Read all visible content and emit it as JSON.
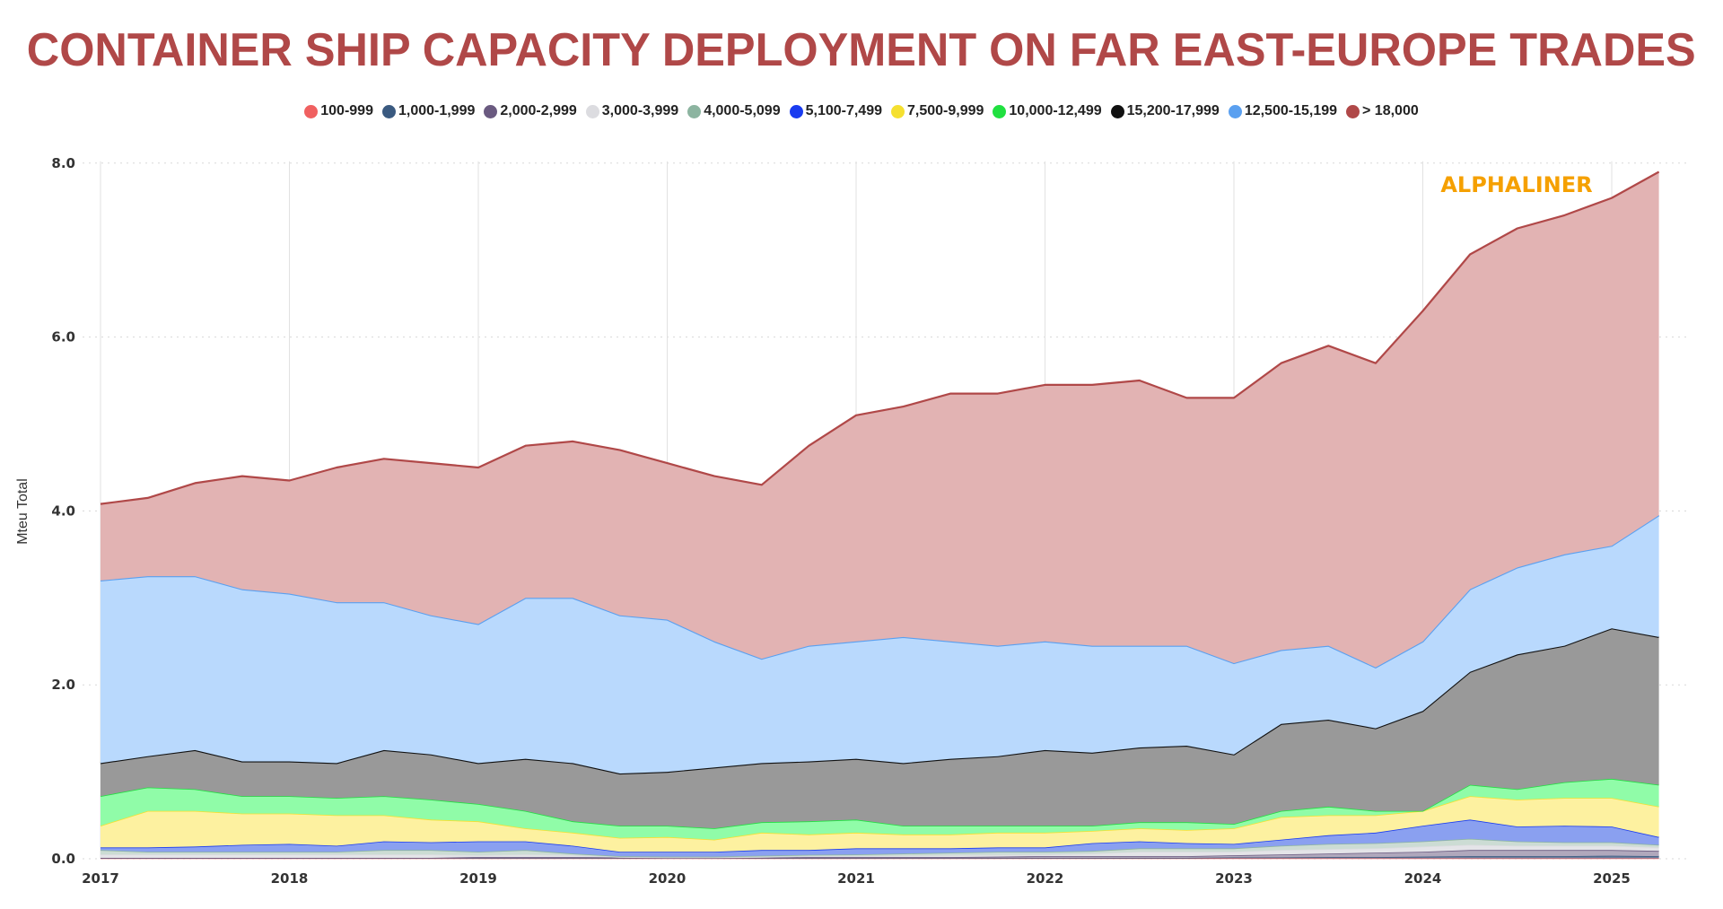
{
  "chart_data": {
    "type": "area",
    "stacked": true,
    "values_are_cumulative_tops": true,
    "title": "CONTAINER SHIP CAPACITY DEPLOYMENT ON FAR EAST-EUROPE TRADES",
    "brand": "ALPHALINER",
    "xlabel": "",
    "ylabel": "Mteu Total",
    "ylim": [
      0,
      8
    ],
    "xlim": [
      2017,
      2025.33
    ],
    "yticks": [
      "0.0",
      "2.0",
      "4.0",
      "6.0",
      "8.0"
    ],
    "xticks": [
      "2017",
      "2018",
      "2019",
      "2020",
      "2021",
      "2022",
      "2023",
      "2024",
      "2025"
    ],
    "grid": "horizontal dotted, vertical year lines",
    "legend_position": "top-center",
    "x": [
      2017,
      2017.25,
      2017.5,
      2017.75,
      2018,
      2018.25,
      2018.5,
      2018.75,
      2019,
      2019.25,
      2019.5,
      2019.75,
      2020,
      2020.25,
      2020.5,
      2020.75,
      2021,
      2021.25,
      2021.5,
      2021.75,
      2022,
      2022.25,
      2022.5,
      2022.75,
      2023,
      2023.25,
      2023.5,
      2023.75,
      2024,
      2024.25,
      2024.5,
      2024.75,
      2025,
      2025.25
    ],
    "series": [
      {
        "name": "100-999",
        "color": "#f06060",
        "fill": "#f08080",
        "values": [
          0.005,
          0.005,
          0.005,
          0.005,
          0.005,
          0.005,
          0.005,
          0.005,
          0.005,
          0.005,
          0.005,
          0.005,
          0.005,
          0.005,
          0.005,
          0.005,
          0.005,
          0.005,
          0.005,
          0.005,
          0.005,
          0.005,
          0.005,
          0.005,
          0.005,
          0.005,
          0.005,
          0.005,
          0.005,
          0.005,
          0.005,
          0.005,
          0.005,
          0.005
        ]
      },
      {
        "name": "1,000-1,999",
        "color": "#3a5a80",
        "fill": "#6a80a0",
        "values": [
          0.01,
          0.01,
          0.01,
          0.01,
          0.01,
          0.01,
          0.01,
          0.01,
          0.01,
          0.01,
          0.01,
          0.01,
          0.01,
          0.01,
          0.01,
          0.01,
          0.01,
          0.01,
          0.01,
          0.01,
          0.01,
          0.01,
          0.01,
          0.01,
          0.015,
          0.015,
          0.02,
          0.02,
          0.025,
          0.03,
          0.03,
          0.03,
          0.035,
          0.03
        ]
      },
      {
        "name": "2,000-2,999",
        "color": "#6a5a80",
        "fill": "#b0a8bc",
        "values": [
          0.01,
          0.01,
          0.01,
          0.01,
          0.01,
          0.01,
          0.01,
          0.01,
          0.02,
          0.02,
          0.02,
          0.015,
          0.01,
          0.01,
          0.015,
          0.02,
          0.02,
          0.02,
          0.02,
          0.025,
          0.03,
          0.03,
          0.03,
          0.03,
          0.04,
          0.05,
          0.06,
          0.07,
          0.08,
          0.1,
          0.1,
          0.1,
          0.1,
          0.09
        ]
      },
      {
        "name": "3,000-3,999",
        "color": "#dcdce0",
        "fill": "#e4e4e8",
        "values": [
          0.05,
          0.05,
          0.05,
          0.05,
          0.05,
          0.05,
          0.05,
          0.05,
          0.04,
          0.05,
          0.04,
          0.02,
          0.015,
          0.015,
          0.02,
          0.03,
          0.03,
          0.035,
          0.04,
          0.045,
          0.05,
          0.06,
          0.08,
          0.08,
          0.08,
          0.1,
          0.11,
          0.12,
          0.14,
          0.16,
          0.15,
          0.15,
          0.15,
          0.13
        ]
      },
      {
        "name": "4,000-5,099",
        "color": "#8cb4a0",
        "fill": "#ccdcd4",
        "values": [
          0.1,
          0.08,
          0.08,
          0.08,
          0.08,
          0.08,
          0.1,
          0.1,
          0.08,
          0.1,
          0.06,
          0.03,
          0.025,
          0.025,
          0.035,
          0.045,
          0.05,
          0.06,
          0.07,
          0.08,
          0.08,
          0.09,
          0.12,
          0.12,
          0.12,
          0.15,
          0.17,
          0.18,
          0.2,
          0.23,
          0.2,
          0.19,
          0.19,
          0.16
        ]
      },
      {
        "name": "5,100-7,499",
        "color": "#1a3cf0",
        "fill": "#8aa0f0",
        "values": [
          0.13,
          0.13,
          0.14,
          0.16,
          0.17,
          0.15,
          0.2,
          0.19,
          0.2,
          0.2,
          0.15,
          0.08,
          0.08,
          0.08,
          0.1,
          0.1,
          0.12,
          0.12,
          0.12,
          0.13,
          0.13,
          0.18,
          0.2,
          0.18,
          0.17,
          0.22,
          0.27,
          0.3,
          0.38,
          0.45,
          0.37,
          0.38,
          0.37,
          0.25
        ]
      },
      {
        "name": "7,500-9,999",
        "color": "#f5e030",
        "fill": "#fdf1a0",
        "values": [
          0.38,
          0.55,
          0.55,
          0.52,
          0.52,
          0.5,
          0.5,
          0.45,
          0.43,
          0.35,
          0.3,
          0.24,
          0.25,
          0.22,
          0.3,
          0.28,
          0.3,
          0.28,
          0.28,
          0.3,
          0.3,
          0.32,
          0.35,
          0.33,
          0.35,
          0.48,
          0.5,
          0.5,
          0.55,
          0.72,
          0.68,
          0.7,
          0.7,
          0.6
        ]
      },
      {
        "name": "10,000-12,499",
        "color": "#20e040",
        "fill": "#90fca8",
        "values": [
          0.72,
          0.82,
          0.8,
          0.72,
          0.72,
          0.7,
          0.72,
          0.68,
          0.63,
          0.55,
          0.43,
          0.38,
          0.38,
          0.35,
          0.42,
          0.43,
          0.45,
          0.38,
          0.38,
          0.38,
          0.38,
          0.38,
          0.42,
          0.42,
          0.4,
          0.55,
          0.6,
          0.55,
          0.55,
          0.85,
          0.8,
          0.88,
          0.92,
          0.85
        ]
      },
      {
        "name": "15,200-17,999",
        "color": "#111111",
        "fill": "#999999",
        "values": [
          1.1,
          1.18,
          1.25,
          1.12,
          1.12,
          1.1,
          1.25,
          1.2,
          1.1,
          1.15,
          1.1,
          0.98,
          1.0,
          1.05,
          1.1,
          1.12,
          1.15,
          1.1,
          1.15,
          1.18,
          1.25,
          1.22,
          1.28,
          1.3,
          1.2,
          1.55,
          1.6,
          1.5,
          1.7,
          2.15,
          2.35,
          2.45,
          2.65,
          2.55
        ]
      },
      {
        "name": "12,500-15,199",
        "color": "#5aa0f0",
        "fill": "#b9d9fd",
        "values": [
          3.2,
          3.25,
          3.25,
          3.1,
          3.05,
          2.95,
          2.95,
          2.8,
          2.7,
          3.0,
          3.0,
          2.8,
          2.75,
          2.5,
          2.3,
          2.45,
          2.5,
          2.55,
          2.5,
          2.45,
          2.5,
          2.45,
          2.45,
          2.45,
          2.25,
          2.4,
          2.45,
          2.2,
          2.5,
          3.1,
          3.35,
          3.5,
          3.6,
          3.95
        ]
      },
      {
        "name": "> 18,000",
        "color": "#b04848",
        "fill": "#e2b3b3",
        "values": [
          4.08,
          4.15,
          4.32,
          4.4,
          4.35,
          4.5,
          4.6,
          4.55,
          4.5,
          4.75,
          4.8,
          4.7,
          4.55,
          4.4,
          4.3,
          4.75,
          5.1,
          5.2,
          5.35,
          5.35,
          5.45,
          5.45,
          5.5,
          5.3,
          5.3,
          5.7,
          5.9,
          5.7,
          6.3,
          6.95,
          7.25,
          7.4,
          7.6,
          7.9
        ]
      }
    ]
  }
}
